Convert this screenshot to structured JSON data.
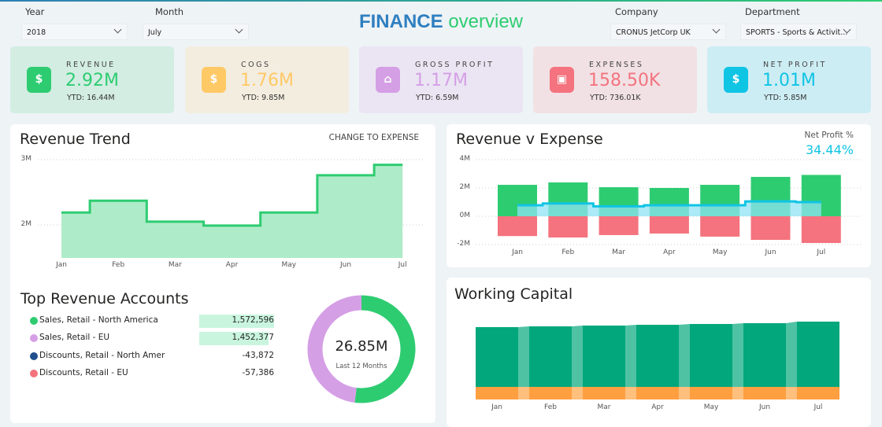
{
  "title": {
    "part1": "FINANCE",
    "part2": "overview"
  },
  "filters": [
    {
      "label": "Year",
      "value": "2018"
    },
    {
      "label": "Month",
      "value": "July"
    },
    {
      "label": "Company",
      "value": "CRONUS JetCorp UK"
    },
    {
      "label": "Department",
      "value": "SPORTS - Sports & Activit..."
    }
  ],
  "kpis": [
    {
      "label": "REVENUE",
      "value": "2.92M",
      "ytd": "YTD: 16.44M",
      "icon": "money-bag-icon",
      "color": "#2ecc71",
      "bg": "#d3ede3",
      "glyph": "$"
    },
    {
      "label": "COGS",
      "value": "1.76M",
      "ytd": "YTD: 9.85M",
      "icon": "price-tag-icon",
      "color": "#ffc966",
      "bg": "#f3ede0",
      "glyph": "$"
    },
    {
      "label": "GROSS PROFIT",
      "value": "1.17M",
      "ytd": "YTD: 6.59M",
      "icon": "house-dollar-icon",
      "color": "#d59fe6",
      "bg": "#ebe5f3",
      "glyph": "⌂"
    },
    {
      "label": "EXPENSES",
      "value": "158.50K",
      "ytd": "YTD: 736.01K",
      "icon": "wallet-icon",
      "color": "#f4737e",
      "bg": "#f1e1e5",
      "glyph": "▣"
    },
    {
      "label": "NET PROFIT",
      "value": "1.01M",
      "ytd": "YTD: 5.85M",
      "icon": "dollar-badge-icon",
      "color": "#10c4e4",
      "bg": "#cdedf4",
      "glyph": "$"
    }
  ],
  "revenue_trend": {
    "title": "Revenue Trend",
    "toggle": "CHANGE TO EXPENSE"
  },
  "revenue_expense": {
    "title": "Revenue v Expense",
    "net_profit_label": "Net Profit %",
    "net_profit_value": "34.44%"
  },
  "top_accounts": {
    "title": "Top Revenue Accounts",
    "rows": [
      {
        "name": "Sales, Retail - North America",
        "value": "1,572,596",
        "color": "#2ecc71",
        "num": 1572596
      },
      {
        "name": "Sales, Retail - EU",
        "value": "1,452,377",
        "color": "#d59fe6",
        "num": 1452377
      },
      {
        "name": "Discounts, Retail - North Amer",
        "value": "-43,872",
        "color": "#1f4e8c",
        "num": -43872
      },
      {
        "name": "Discounts, Retail - EU",
        "value": "-57,386",
        "color": "#f4737e",
        "num": -57386
      }
    ],
    "donut_total": "26.85M",
    "donut_caption": "Last 12 Months"
  },
  "working_capital": {
    "title": "Working Capital"
  },
  "chart_data": [
    {
      "type": "area",
      "title": "Revenue Trend",
      "categories": [
        "Jan",
        "Feb",
        "Mar",
        "Apr",
        "May",
        "Jun",
        "Jul"
      ],
      "values": [
        2.19,
        2.37,
        2.05,
        1.99,
        2.19,
        2.76,
        2.92
      ],
      "yticks": [
        "3M",
        "2M"
      ],
      "ytick_values": [
        3,
        2
      ],
      "unit": "M",
      "ylim": [
        1.49,
        3
      ],
      "grid": true,
      "color": "#2ecc71"
    },
    {
      "type": "bar",
      "title": "Revenue v Expense",
      "categories": [
        "Jan",
        "Feb",
        "Mar",
        "Apr",
        "May",
        "Jun",
        "Jul"
      ],
      "series": [
        {
          "values": [
            2.22,
            2.39,
            2.05,
            2.0,
            2.22,
            2.78,
            2.92
          ],
          "color": "#2ecc71"
        },
        {
          "values": [
            -1.4,
            -1.5,
            -1.33,
            -1.22,
            -1.44,
            -1.67,
            -1.89
          ],
          "color": "#f4737e"
        },
        {
          "values": [
            0.78,
            0.9,
            0.7,
            0.78,
            0.78,
            1.05,
            1.0
          ],
          "color": "#10c4e4"
        }
      ],
      "yticks": [
        "4M",
        "2M",
        "0M",
        "-2M"
      ],
      "ytick_values": [
        4,
        2,
        0,
        -2
      ],
      "ylim": [
        -2,
        4
      ],
      "grid": true
    },
    {
      "type": "pie",
      "title": "Top Revenue Accounts",
      "values": [
        52,
        48
      ],
      "colors": [
        "#2ecc71",
        "#d59fe6"
      ]
    },
    {
      "type": "bar",
      "title": "Working Capital",
      "categories": [
        "Jan",
        "Feb",
        "Mar",
        "Apr",
        "May",
        "Jun",
        "Jul"
      ],
      "series": [
        {
          "values": [
            76,
            77,
            78,
            79,
            80,
            81,
            83
          ],
          "color": "#02a77c"
        },
        {
          "values": [
            16,
            16,
            16,
            16,
            16,
            16,
            16
          ],
          "color": "#ff9f40"
        }
      ],
      "stacked": true
    }
  ]
}
